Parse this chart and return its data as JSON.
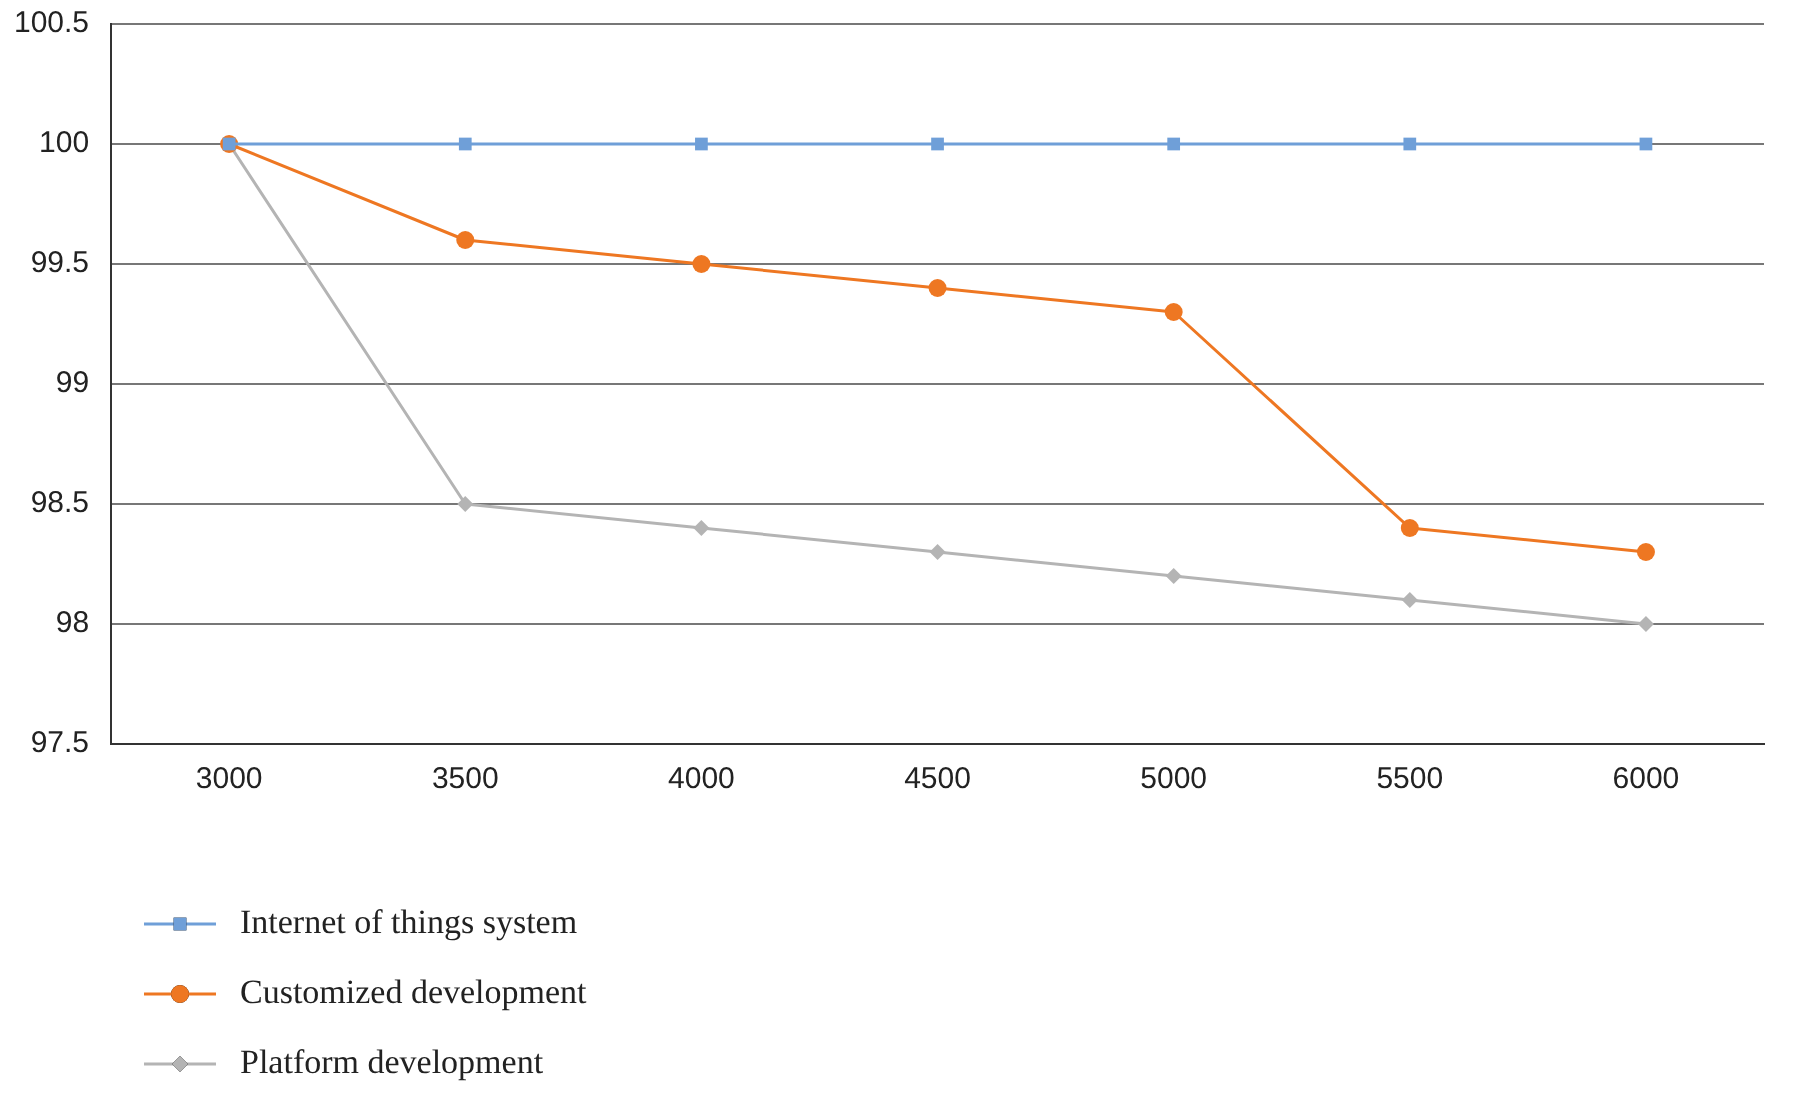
{
  "chart_data": {
    "type": "line",
    "categories": [
      "3000",
      "3500",
      "4000",
      "4500",
      "5000",
      "5500",
      "6000"
    ],
    "series": [
      {
        "name": "Internet of things system",
        "color": "#6f9fd8",
        "marker": "square",
        "values": [
          100,
          100,
          100,
          100,
          100,
          100,
          100
        ]
      },
      {
        "name": "Customized development",
        "color": "#ee7722",
        "marker": "circle",
        "values": [
          100,
          99.6,
          99.5,
          99.4,
          99.3,
          98.4,
          98.3
        ]
      },
      {
        "name": "Platform development",
        "color": "#b4b4b4",
        "marker": "diamond",
        "values": [
          100,
          98.5,
          98.4,
          98.3,
          98.2,
          98.1,
          98.0
        ]
      }
    ],
    "ylim": [
      97.5,
      100.5
    ],
    "yticks": [
      97.5,
      98,
      98.5,
      99,
      99.5,
      100,
      100.5
    ],
    "grid": "y",
    "legend": "bottom left",
    "line_style": "solid"
  }
}
